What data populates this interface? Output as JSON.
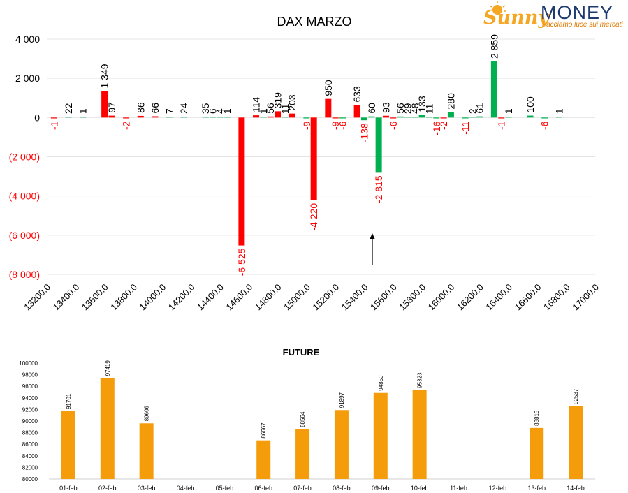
{
  "logo": {
    "brand_script": "Sunny",
    "brand_word": "MONEY",
    "tagline": "Facciamo luce sui mercati",
    "colors": {
      "script": "#f5a623",
      "word": "#1f3a6e",
      "tagline": "#e07b00"
    }
  },
  "colors": {
    "negative": "#ff0000",
    "positive": "#00b050",
    "future": "#f59c0b",
    "text": "#000000"
  },
  "chart_data": [
    {
      "type": "bar",
      "title": "DAX MARZO",
      "x_ticks": [
        "13200.0",
        "13400.0",
        "13600.0",
        "13800.0",
        "14000.0",
        "14200.0",
        "14400.0",
        "14600.0",
        "14800.0",
        "15000.0",
        "15200.0",
        "15400.0",
        "15600.0",
        "15800.0",
        "16000.0",
        "16200.0",
        "16400.0",
        "16600.0",
        "16800.0",
        "17000.0"
      ],
      "y_ticks": [
        "4 000",
        "2 000",
        "0",
        "(2 000)",
        "(4 000)",
        "(6 000)",
        "(8 000)"
      ],
      "ylim": [
        -8000,
        4000
      ],
      "xlim": [
        13200,
        17000
      ],
      "grid": true,
      "annotation": "arrow pointing up at 15450",
      "series": [
        {
          "color": "red",
          "points": [
            {
              "x": 13250,
              "v": -1,
              "label": "-1"
            },
            {
              "x": 13600,
              "v": 1349,
              "label": "1 349"
            },
            {
              "x": 13650,
              "v": 97,
              "label": "97"
            },
            {
              "x": 13750,
              "v": -2,
              "label": "-2"
            },
            {
              "x": 13850,
              "v": 86,
              "label": "86"
            },
            {
              "x": 13950,
              "v": 66,
              "label": "66"
            },
            {
              "x": 14550,
              "v": -6525,
              "label": "-6 525"
            },
            {
              "x": 14650,
              "v": 114,
              "label": "114"
            },
            {
              "x": 14750,
              "v": 56,
              "label": "56"
            },
            {
              "x": 14800,
              "v": 319,
              "label": "319"
            },
            {
              "x": 14900,
              "v": 203,
              "label": "203"
            },
            {
              "x": 15050,
              "v": -4220,
              "label": "-4 220"
            },
            {
              "x": 15150,
              "v": 950,
              "label": "950"
            },
            {
              "x": 15200,
              "v": -9,
              "label": "-9"
            },
            {
              "x": 15350,
              "v": 633,
              "label": "633"
            },
            {
              "x": 15550,
              "v": 93,
              "label": "93"
            },
            {
              "x": 15600,
              "v": -6,
              "label": "-6"
            },
            {
              "x": 15950,
              "v": -2,
              "label": "-2"
            },
            {
              "x": 16350,
              "v": -1,
              "label": "-1"
            }
          ]
        },
        {
          "color": "green",
          "points": [
            {
              "x": 13350,
              "v": 22,
              "label": "22"
            },
            {
              "x": 13450,
              "v": 1,
              "label": "1"
            },
            {
              "x": 14050,
              "v": 7,
              "label": "7"
            },
            {
              "x": 14150,
              "v": 24,
              "label": "24"
            },
            {
              "x": 14300,
              "v": 35,
              "label": "35"
            },
            {
              "x": 14350,
              "v": 6,
              "label": "6"
            },
            {
              "x": 14400,
              "v": 4,
              "label": "4"
            },
            {
              "x": 14450,
              "v": 1,
              "label": "1"
            },
            {
              "x": 14700,
              "v": 1,
              "label": "1"
            },
            {
              "x": 14850,
              "v": 11,
              "label": "11"
            },
            {
              "x": 15000,
              "v": -9,
              "label": "-9"
            },
            {
              "x": 15250,
              "v": -6,
              "label": "-6"
            },
            {
              "x": 15400,
              "v": -138,
              "label": "-138"
            },
            {
              "x": 15450,
              "v": 60,
              "label": "60"
            },
            {
              "x": 15500,
              "v": -2815,
              "label": "-2 815"
            },
            {
              "x": 15650,
              "v": 56,
              "label": "56"
            },
            {
              "x": 15700,
              "v": 29,
              "label": "29"
            },
            {
              "x": 15750,
              "v": 48,
              "label": "48"
            },
            {
              "x": 15800,
              "v": 133,
              "label": "133"
            },
            {
              "x": 15850,
              "v": 11,
              "label": "11"
            },
            {
              "x": 15900,
              "v": -16,
              "label": "-16"
            },
            {
              "x": 16000,
              "v": 280,
              "label": "280"
            },
            {
              "x": 16100,
              "v": -11,
              "label": "-11"
            },
            {
              "x": 16150,
              "v": 2,
              "label": "2"
            },
            {
              "x": 16200,
              "v": 61,
              "label": "61"
            },
            {
              "x": 16300,
              "v": 2859,
              "label": "2 859"
            },
            {
              "x": 16400,
              "v": 1,
              "label": "1"
            },
            {
              "x": 16550,
              "v": 100,
              "label": "100"
            },
            {
              "x": 16650,
              "v": -6,
              "label": "-6"
            },
            {
              "x": 16750,
              "v": 1,
              "label": "1"
            }
          ]
        }
      ]
    },
    {
      "type": "bar",
      "title": "FUTURE",
      "categories": [
        "01-feb",
        "02-feb",
        "03-feb",
        "04-feb",
        "05-feb",
        "06-feb",
        "07-feb",
        "08-feb",
        "09-feb",
        "10-feb",
        "11-feb",
        "12-feb",
        "13-feb",
        "14-feb"
      ],
      "values": [
        91701,
        97419,
        89606,
        null,
        null,
        86667,
        88564,
        91897,
        94850,
        95323,
        null,
        null,
        88813,
        92537
      ],
      "labels": [
        "91701",
        "97419",
        "89606",
        "",
        "",
        "86667",
        "88564",
        "91897",
        "94850",
        "95323",
        "",
        "",
        "88813",
        "92537"
      ],
      "y_ticks": [
        "100000",
        "98000",
        "96000",
        "94000",
        "92000",
        "90000",
        "88000",
        "86000",
        "84000",
        "82000",
        "80000"
      ],
      "ylim": [
        80000,
        100000
      ],
      "grid": false
    }
  ]
}
